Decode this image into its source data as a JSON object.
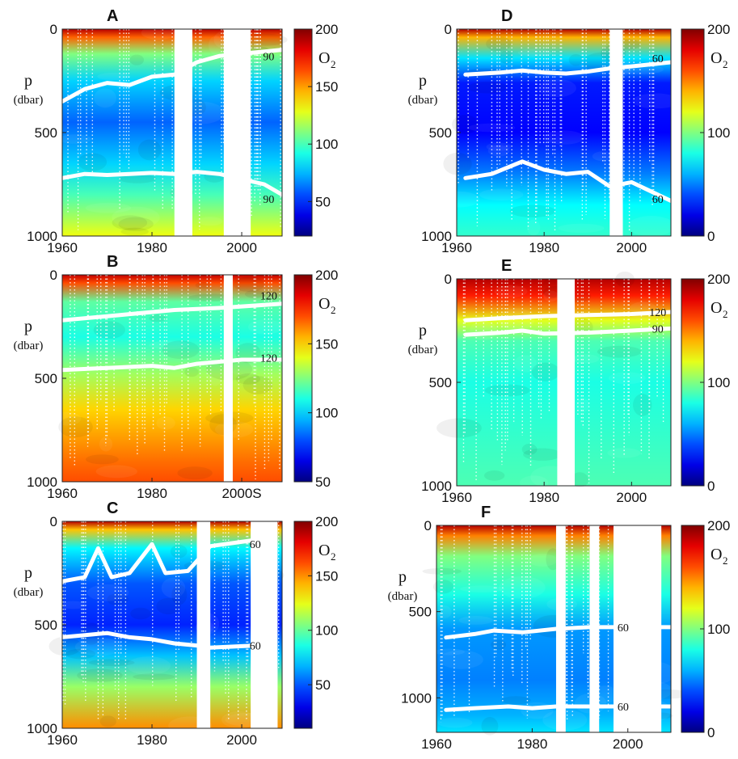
{
  "chart_data": [
    {
      "type": "heatmap",
      "panel": "A",
      "ylabel": "p",
      "yunit": "(dbar)",
      "colorbar_label": "O",
      "colorbar_sub": "2",
      "xlim": [
        1960,
        2009
      ],
      "ylim": [
        0,
        1000
      ],
      "xticks": [
        1960,
        1980,
        2000
      ],
      "yticks": [
        0,
        500,
        1000
      ],
      "colorbar_range": [
        20,
        200
      ],
      "colorbar_ticks": [
        50,
        100,
        150,
        200
      ],
      "gaps": [
        [
          1985,
          1989
        ],
        [
          1996,
          2002
        ]
      ],
      "contour_labels": [
        {
          "label": "90",
          "x": 2006,
          "y": 130
        },
        {
          "label": "90",
          "x": 2006,
          "y": 820
        }
      ],
      "layers": [
        {
          "depth": 0,
          "o2": 190
        },
        {
          "depth": 40,
          "o2": 160
        },
        {
          "depth": 120,
          "o2": 110
        },
        {
          "depth": 250,
          "o2": 80
        },
        {
          "depth": 450,
          "o2": 60
        },
        {
          "depth": 650,
          "o2": 80
        },
        {
          "depth": 800,
          "o2": 100
        },
        {
          "depth": 1000,
          "o2": 130
        }
      ],
      "white_lines": [
        {
          "label": "90",
          "points": [
            [
              1960,
              350
            ],
            [
              1965,
              290
            ],
            [
              1970,
              260
            ],
            [
              1975,
              270
            ],
            [
              1980,
              230
            ],
            [
              1985,
              220
            ],
            [
              1990,
              160
            ],
            [
              1995,
              130
            ],
            [
              2009,
              100
            ]
          ]
        },
        {
          "label": "90",
          "points": [
            [
              1960,
              720
            ],
            [
              1965,
              700
            ],
            [
              1970,
              705
            ],
            [
              1975,
              700
            ],
            [
              1980,
              695
            ],
            [
              1985,
              700
            ],
            [
              1990,
              690
            ],
            [
              1995,
              700
            ],
            [
              2005,
              750
            ],
            [
              2009,
              800
            ]
          ]
        }
      ]
    },
    {
      "type": "heatmap",
      "panel": "B",
      "ylabel": "p",
      "yunit": "(dbar)",
      "colorbar_label": "O",
      "colorbar_sub": "2",
      "xlim": [
        1960,
        2009
      ],
      "ylim": [
        0,
        1000
      ],
      "xticks": [
        1960,
        1980,
        "2000S"
      ],
      "yticks": [
        0,
        500,
        1000
      ],
      "colorbar_range": [
        50,
        200
      ],
      "colorbar_ticks": [
        50,
        100,
        150,
        200
      ],
      "gaps": [
        [
          1996,
          1998
        ]
      ],
      "contour_labels": [
        {
          "label": "120",
          "x": 2006,
          "y": 100
        },
        {
          "label": "120",
          "x": 2006,
          "y": 400
        }
      ],
      "layers": [
        {
          "depth": 0,
          "o2": 190
        },
        {
          "depth": 40,
          "o2": 170
        },
        {
          "depth": 130,
          "o2": 120
        },
        {
          "depth": 300,
          "o2": 110
        },
        {
          "depth": 480,
          "o2": 130
        },
        {
          "depth": 650,
          "o2": 150
        },
        {
          "depth": 900,
          "o2": 165
        },
        {
          "depth": 1000,
          "o2": 170
        }
      ],
      "white_lines": [
        {
          "label": "120",
          "points": [
            [
              1960,
              220
            ],
            [
              1970,
              200
            ],
            [
              1975,
              190
            ],
            [
              1985,
              170
            ],
            [
              1995,
              160
            ],
            [
              2009,
              140
            ]
          ]
        },
        {
          "label": "120",
          "points": [
            [
              1960,
              460
            ],
            [
              1970,
              450
            ],
            [
              1980,
              440
            ],
            [
              1985,
              450
            ],
            [
              1990,
              430
            ],
            [
              2000,
              410
            ],
            [
              2009,
              410
            ]
          ]
        }
      ]
    },
    {
      "type": "heatmap",
      "panel": "C",
      "ylabel": "p",
      "yunit": "(dbar)",
      "colorbar_label": "O",
      "colorbar_sub": "2",
      "xlim": [
        1960,
        2009
      ],
      "ylim": [
        0,
        1000
      ],
      "xticks": [
        1960,
        1980,
        2000
      ],
      "yticks": [
        0,
        500,
        1000
      ],
      "colorbar_range": [
        10,
        200
      ],
      "colorbar_ticks": [
        50,
        100,
        150,
        200
      ],
      "gaps": [
        [
          1990,
          1993
        ],
        [
          2002,
          2008
        ]
      ],
      "contour_labels": [
        {
          "label": "60",
          "x": 2003,
          "y": 110
        },
        {
          "label": "60",
          "x": 2003,
          "y": 600
        }
      ],
      "layers": [
        {
          "depth": 0,
          "o2": 190
        },
        {
          "depth": 40,
          "o2": 140
        },
        {
          "depth": 130,
          "o2": 80
        },
        {
          "depth": 300,
          "o2": 50
        },
        {
          "depth": 500,
          "o2": 40
        },
        {
          "depth": 650,
          "o2": 70
        },
        {
          "depth": 800,
          "o2": 110
        },
        {
          "depth": 1000,
          "o2": 150
        }
      ],
      "white_lines": [
        {
          "label": "60",
          "points": [
            [
              1960,
              290
            ],
            [
              1965,
              270
            ],
            [
              1968,
              130
            ],
            [
              1971,
              270
            ],
            [
              1975,
              250
            ],
            [
              1980,
              110
            ],
            [
              1983,
              250
            ],
            [
              1988,
              240
            ],
            [
              1993,
              120
            ],
            [
              2003,
              90
            ]
          ]
        },
        {
          "label": "60",
          "points": [
            [
              1960,
              560
            ],
            [
              1970,
              540
            ],
            [
              1975,
              560
            ],
            [
              1980,
              570
            ],
            [
              1985,
              590
            ],
            [
              1990,
              600
            ],
            [
              1993,
              610
            ],
            [
              2003,
              600
            ]
          ]
        }
      ]
    },
    {
      "type": "heatmap",
      "panel": "D",
      "ylabel": "p",
      "yunit": "(dbar)",
      "colorbar_label": "O",
      "colorbar_sub": "2",
      "xlim": [
        1960,
        2009
      ],
      "ylim": [
        0,
        1000
      ],
      "xticks": [
        1960,
        1980,
        2000
      ],
      "yticks": [
        0,
        500,
        1000
      ],
      "colorbar_range": [
        0,
        200
      ],
      "colorbar_ticks": [
        0,
        100,
        200
      ],
      "gaps": [
        [
          1995,
          1998
        ]
      ],
      "contour_labels": [
        {
          "label": "60",
          "x": 2006,
          "y": 140
        },
        {
          "label": "60",
          "x": 2006,
          "y": 820
        }
      ],
      "layers": [
        {
          "depth": 0,
          "o2": 190
        },
        {
          "depth": 40,
          "o2": 140
        },
        {
          "depth": 140,
          "o2": 70
        },
        {
          "depth": 260,
          "o2": 30
        },
        {
          "depth": 500,
          "o2": 25
        },
        {
          "depth": 700,
          "o2": 50
        },
        {
          "depth": 850,
          "o2": 75
        },
        {
          "depth": 1000,
          "o2": 85
        }
      ],
      "white_lines": [
        {
          "label": "60",
          "points": [
            [
              1962,
              220
            ],
            [
              1970,
              210
            ],
            [
              1975,
              200
            ],
            [
              1980,
              210
            ],
            [
              1985,
              215
            ],
            [
              1990,
              205
            ],
            [
              1995,
              190
            ],
            [
              2000,
              180
            ],
            [
              2009,
              160
            ]
          ]
        },
        {
          "label": "60",
          "points": [
            [
              1962,
              720
            ],
            [
              1968,
              700
            ],
            [
              1975,
              640
            ],
            [
              1980,
              680
            ],
            [
              1985,
              700
            ],
            [
              1990,
              690
            ],
            [
              1995,
              760
            ],
            [
              2000,
              740
            ],
            [
              2009,
              830
            ]
          ]
        }
      ]
    },
    {
      "type": "heatmap",
      "panel": "E",
      "ylabel": "p",
      "yunit": "(dbar)",
      "colorbar_label": "O",
      "colorbar_sub": "2",
      "xlim": [
        1960,
        2009
      ],
      "ylim": [
        0,
        1000
      ],
      "xticks": [
        1960,
        1980,
        2000
      ],
      "yticks": [
        0,
        500,
        1000
      ],
      "colorbar_range": [
        0,
        200
      ],
      "colorbar_ticks": [
        0,
        100,
        200
      ],
      "gaps": [
        [
          1983,
          1987
        ]
      ],
      "contour_labels": [
        {
          "label": "120",
          "x": 2006,
          "y": 160
        },
        {
          "label": "90",
          "x": 2006,
          "y": 240
        }
      ],
      "layers": [
        {
          "depth": 0,
          "o2": 190
        },
        {
          "depth": 80,
          "o2": 170
        },
        {
          "depth": 200,
          "o2": 120
        },
        {
          "depth": 300,
          "o2": 90
        },
        {
          "depth": 500,
          "o2": 80
        },
        {
          "depth": 750,
          "o2": 85
        },
        {
          "depth": 1000,
          "o2": 90
        }
      ],
      "white_lines": [
        {
          "label": "120",
          "points": [
            [
              1962,
              200
            ],
            [
              1970,
              190
            ],
            [
              1980,
              180
            ],
            [
              1990,
              175
            ],
            [
              2000,
              170
            ],
            [
              2009,
              160
            ]
          ]
        },
        {
          "label": "90",
          "points": [
            [
              1962,
              270
            ],
            [
              1970,
              260
            ],
            [
              1975,
              250
            ],
            [
              1980,
              265
            ],
            [
              1990,
              260
            ],
            [
              2000,
              250
            ],
            [
              2009,
              240
            ]
          ]
        }
      ]
    },
    {
      "type": "heatmap",
      "panel": "F",
      "ylabel": "p",
      "yunit": "(dbar)",
      "colorbar_label": "O",
      "colorbar_sub": "2",
      "xlim": [
        1960,
        2009
      ],
      "ylim": [
        0,
        1200
      ],
      "xticks": [
        1960,
        1980,
        2000
      ],
      "yticks": [
        0,
        500,
        1000
      ],
      "colorbar_range": [
        0,
        200
      ],
      "colorbar_ticks": [
        0,
        100,
        200
      ],
      "gaps": [
        [
          1985,
          1987
        ],
        [
          1992,
          1994
        ],
        [
          1997,
          2007
        ]
      ],
      "contour_labels": [
        {
          "label": "60",
          "x": 1999,
          "y": 590
        },
        {
          "label": "60",
          "x": 1999,
          "y": 1050
        }
      ],
      "layers": [
        {
          "depth": 0,
          "o2": 190
        },
        {
          "depth": 60,
          "o2": 150
        },
        {
          "depth": 180,
          "o2": 100
        },
        {
          "depth": 400,
          "o2": 80
        },
        {
          "depth": 600,
          "o2": 55
        },
        {
          "depth": 900,
          "o2": 50
        },
        {
          "depth": 1100,
          "o2": 60
        },
        {
          "depth": 1200,
          "o2": 70
        }
      ],
      "white_lines": [
        {
          "label": "60",
          "points": [
            [
              1962,
              650
            ],
            [
              1968,
              630
            ],
            [
              1972,
              610
            ],
            [
              1978,
              620
            ],
            [
              1985,
              600
            ],
            [
              1992,
              590
            ],
            [
              1997,
              590
            ],
            [
              2009,
              590
            ]
          ]
        },
        {
          "label": "60",
          "points": [
            [
              1962,
              1070
            ],
            [
              1968,
              1060
            ],
            [
              1975,
              1050
            ],
            [
              1980,
              1060
            ],
            [
              1985,
              1050
            ],
            [
              1997,
              1050
            ],
            [
              2009,
              1050
            ]
          ]
        }
      ]
    }
  ]
}
